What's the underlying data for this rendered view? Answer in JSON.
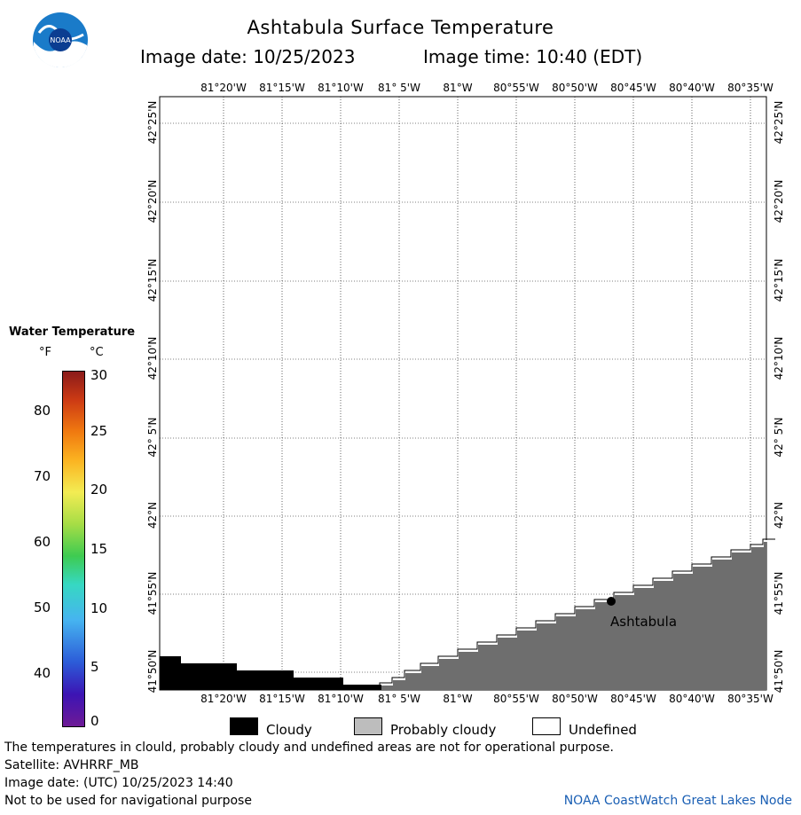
{
  "header": {
    "title": "Ashtabula Surface Temperature",
    "image_date_label": "Image date: 10/25/2023",
    "image_time_label": "Image time: 10:40 (EDT)"
  },
  "logo": {
    "text": "NOAA"
  },
  "map": {
    "lon_labels": [
      "81°20'W",
      "81°15'W",
      "81°10'W",
      "81° 5'W",
      "81°W",
      "80°55'W",
      "80°50'W",
      "80°45'W",
      "80°40'W",
      "80°35'W"
    ],
    "lat_labels": [
      "42°25'N",
      "42°20'N",
      "42°15'N",
      "42°10'N",
      "42° 5'N",
      "42°N",
      "41°55'N",
      "41°50'N"
    ],
    "place_label": "Ashtabula",
    "colors": {
      "land": "#6e6e6e",
      "cloud": "#000000",
      "undefined": "#ffffff",
      "grid": "#000000"
    }
  },
  "colorbar": {
    "title": "Water Temperature",
    "unit_f": "°F",
    "unit_c": "°C",
    "f_ticks": [
      "80",
      "70",
      "60",
      "50",
      "40"
    ],
    "c_ticks": [
      "30",
      "25",
      "20",
      "15",
      "10",
      "5",
      "0"
    ]
  },
  "legend": {
    "cloudy": "Cloudy",
    "probably_cloudy": "Probably cloudy",
    "undefined": "Undefined"
  },
  "footer": {
    "line1": "The temperatures in clould, probably cloudy and undefined areas are not for operational purpose.",
    "line2": "Satellite: AVHRRF_MB",
    "line3": "Image date: (UTC) 10/25/2023  14:40",
    "line4": "Not to be used for navigational purpose",
    "credit": "NOAA CoastWatch Great Lakes Node"
  }
}
